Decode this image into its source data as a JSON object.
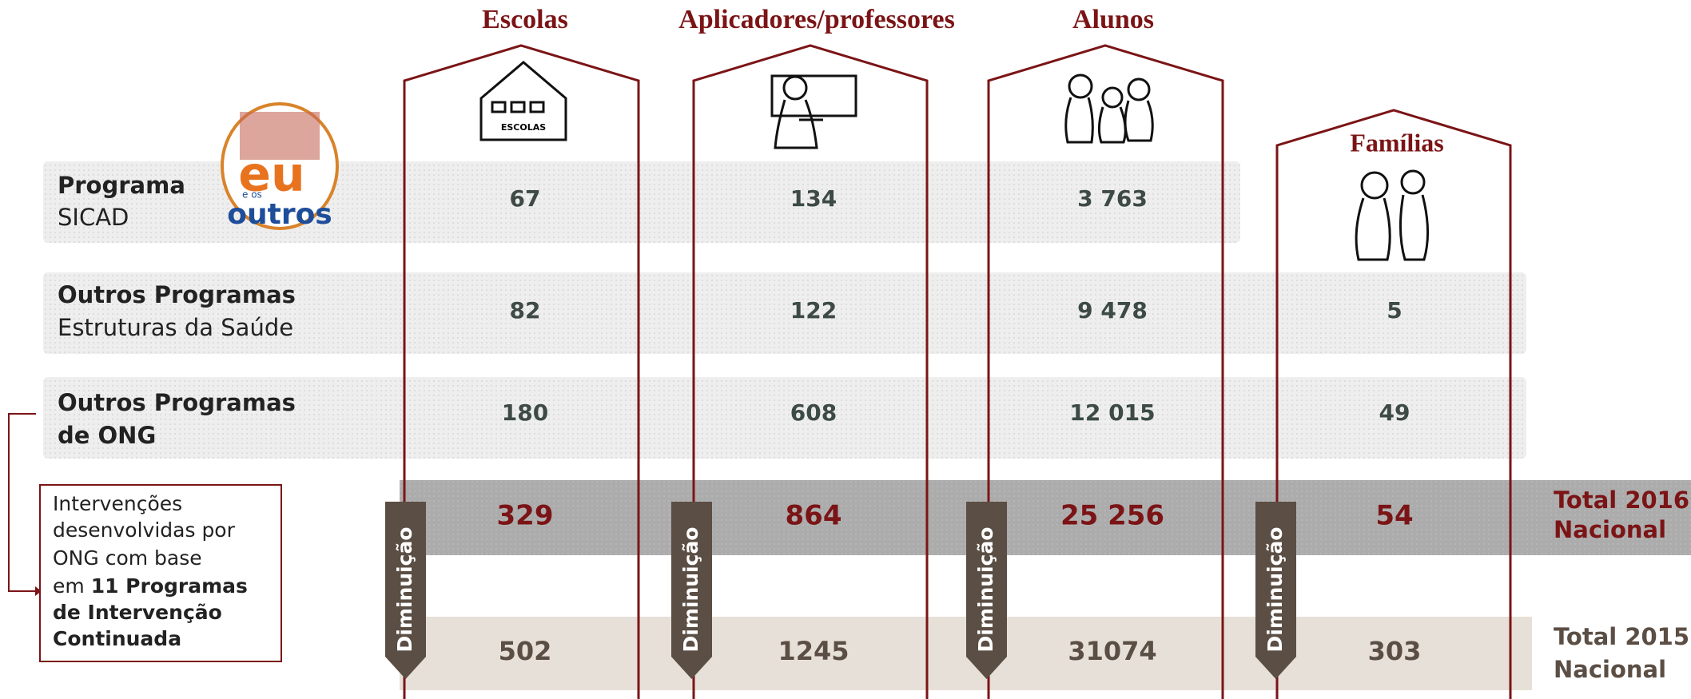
{
  "columns": [
    {
      "title": "Escolas",
      "icon_text": "ESCOLAS"
    },
    {
      "title": "Aplicadores/professores"
    },
    {
      "title": "Alunos"
    },
    {
      "title": "Famílias"
    }
  ],
  "logo": {
    "lines": [
      "eu",
      "e os",
      "outros"
    ]
  },
  "rows": [
    {
      "label_bold": "Programa",
      "label": "SICAD",
      "values": [
        "67",
        "134",
        "3 763"
      ]
    },
    {
      "label_bold": "Outros Programas",
      "label": "Estruturas da Saúde",
      "values": [
        "82",
        "122",
        "9 478",
        "5"
      ]
    },
    {
      "label_bold": "Outros Programas",
      "label_bold_2": "de ONG",
      "values": [
        "180",
        "608",
        "12 015",
        "49"
      ]
    }
  ],
  "totals": [
    {
      "label_1": "Total 2016",
      "label_2": "Nacional",
      "values": [
        "329",
        "864",
        "25 256",
        "54"
      ]
    },
    {
      "label_1": "Total 2015",
      "label_2": "Nacional",
      "values": [
        "502",
        "1245",
        "31074",
        "303"
      ]
    }
  ],
  "arrow_label": "Diminuição",
  "note": {
    "text": [
      "Intervenções",
      "desenvolvidas por",
      "ONG com base"
    ],
    "text_lead": "em",
    "text_bold": [
      "11 Programas",
      "de Intervenção",
      "Continuada"
    ]
  }
}
